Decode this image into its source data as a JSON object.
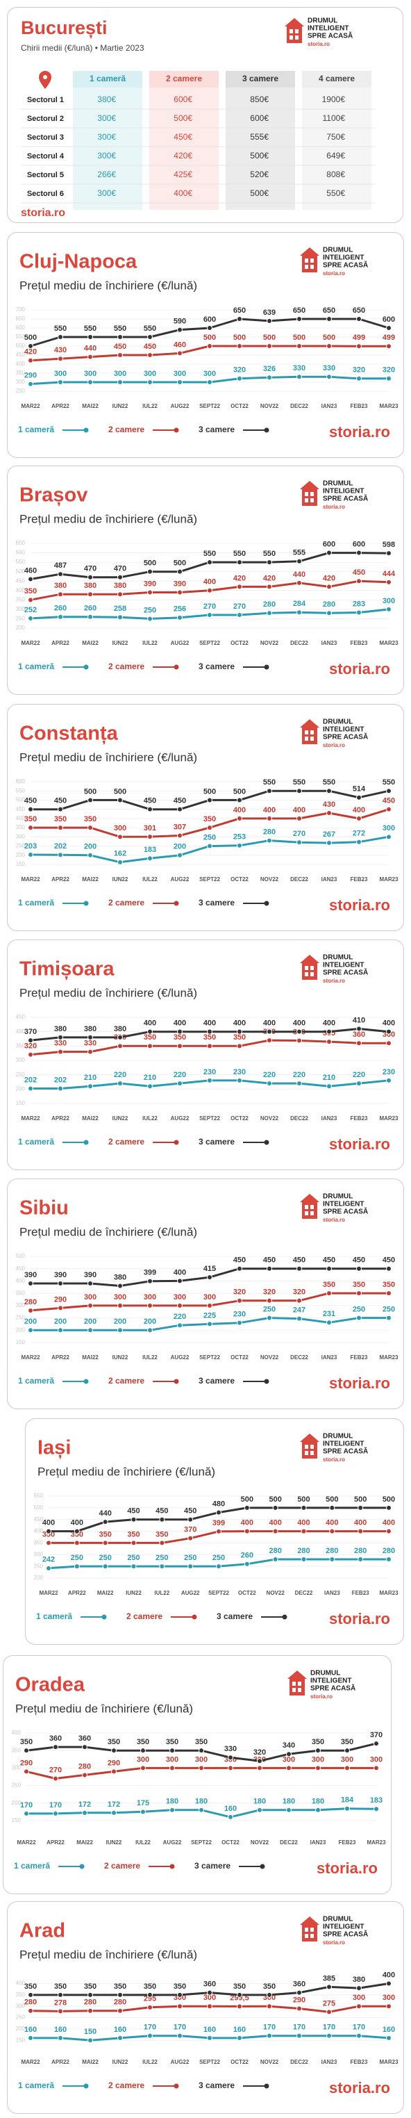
{
  "brand": {
    "tagline": [
      "DRUMUL",
      "INTELIGENT",
      "SPRE ACASĂ"
    ],
    "small": "storia.ro",
    "logo": "storia.ro"
  },
  "bucharest": {
    "title": "București",
    "subtitle": "Chirii medii (€/lună) • Martie 2023",
    "columns": [
      "1 cameră",
      "2 camere",
      "3 camere",
      "4 camere"
    ],
    "rows": [
      [
        "Sectorul 1",
        "380€",
        "600€",
        "850€",
        "1900€"
      ],
      [
        "Sectorul 2",
        "300€",
        "500€",
        "600€",
        "1100€"
      ],
      [
        "Sectorul 3",
        "300€",
        "450€",
        "555€",
        "750€"
      ],
      [
        "Sectorul 4",
        "300€",
        "420€",
        "500€",
        "649€"
      ],
      [
        "Sectorul 5",
        "266€",
        "425€",
        "520€",
        "808€"
      ],
      [
        "Sectorul 6",
        "300€",
        "400€",
        "500€",
        "550€"
      ]
    ]
  },
  "chart_data": [
    {
      "type": "line",
      "title": "Cluj-Napoca",
      "subtitle": "Prețul mediu de închiriere (€/lună)",
      "categories": [
        "MAR22",
        "APR22",
        "MAI22",
        "IUN22",
        "IUL22",
        "AUG22",
        "SEPT22",
        "OCT22",
        "NOV22",
        "DEC22",
        "IAN23",
        "FEB23",
        "MAR23"
      ],
      "ylim": [
        250,
        700
      ],
      "yticks": [
        250,
        300,
        350,
        400,
        450,
        500,
        550,
        600,
        650,
        700
      ],
      "grid": true,
      "series": [
        {
          "name": "1 cameră",
          "color": "#2a9bb0",
          "values": [
            290,
            300,
            300,
            300,
            300,
            300,
            300,
            320,
            326,
            330,
            330,
            320,
            320
          ]
        },
        {
          "name": "2 camere",
          "color": "#c23b32",
          "values": [
            420,
            430,
            440,
            450,
            450,
            460,
            500,
            500,
            500,
            500,
            500,
            499,
            499
          ]
        },
        {
          "name": "3 camere",
          "color": "#333333",
          "values": [
            500,
            550,
            550,
            550,
            550,
            590,
            600,
            650,
            639,
            650,
            650,
            650,
            600
          ]
        }
      ]
    },
    {
      "type": "line",
      "title": "Brașov",
      "subtitle": "Prețul mediu de închiriere (€/lună)",
      "categories": [
        "MAR22",
        "APR22",
        "MAI22",
        "IUN22",
        "IUL22",
        "AUG22",
        "SEPT22",
        "OCT22",
        "NOV22",
        "DEC22",
        "IAN23",
        "FEB23",
        "MAR23"
      ],
      "ylim": [
        200,
        650
      ],
      "yticks": [
        200,
        250,
        300,
        350,
        400,
        450,
        500,
        550,
        600,
        650
      ],
      "grid": true,
      "series": [
        {
          "name": "1 cameră",
          "color": "#2a9bb0",
          "values": [
            252,
            260,
            260,
            258,
            250,
            256,
            270,
            270,
            280,
            284,
            280,
            283,
            300
          ]
        },
        {
          "name": "2 camere",
          "color": "#c23b32",
          "values": [
            350,
            380,
            380,
            380,
            390,
            390,
            400,
            420,
            420,
            440,
            420,
            450,
            444
          ]
        },
        {
          "name": "3 camere",
          "color": "#333333",
          "values": [
            460,
            487,
            470,
            470,
            500,
            500,
            550,
            550,
            550,
            555,
            600,
            600,
            598
          ]
        }
      ]
    },
    {
      "type": "line",
      "title": "Constanța",
      "subtitle": "Prețul mediu de închiriere (€/lună)",
      "categories": [
        "MAR22",
        "APR22",
        "MAI22",
        "IUN22",
        "IUL22",
        "AUG22",
        "SEPT22",
        "OCT22",
        "NOV22",
        "DEC22",
        "IAN23",
        "FEB23",
        "MAR23"
      ],
      "ylim": [
        150,
        600
      ],
      "yticks": [
        150,
        200,
        250,
        300,
        350,
        400,
        450,
        500,
        550,
        600
      ],
      "grid": true,
      "series": [
        {
          "name": "1 cameră",
          "color": "#2a9bb0",
          "values": [
            203,
            202,
            200,
            162,
            183,
            200,
            250,
            253,
            280,
            270,
            267,
            272,
            300
          ]
        },
        {
          "name": "2 camere",
          "color": "#c23b32",
          "values": [
            350,
            350,
            350,
            300,
            301,
            307,
            350,
            400,
            400,
            400,
            430,
            400,
            450
          ]
        },
        {
          "name": "3 camere",
          "color": "#333333",
          "values": [
            450,
            450,
            500,
            500,
            450,
            450,
            500,
            500,
            550,
            550,
            550,
            514,
            550
          ]
        }
      ]
    },
    {
      "type": "line",
      "title": "Timișoara",
      "subtitle": "Prețul mediu de închiriere (€/lună)",
      "categories": [
        "MAR22",
        "APR22",
        "MAI22",
        "IUN22",
        "IUL22",
        "AUG22",
        "SEPT22",
        "OCT22",
        "NOV22",
        "DEC22",
        "IAN23",
        "FEB23",
        "MAR23"
      ],
      "ylim": [
        150,
        450
      ],
      "yticks": [
        150,
        200,
        250,
        300,
        350,
        400,
        450
      ],
      "grid": true,
      "series": [
        {
          "name": "1 cameră",
          "color": "#2a9bb0",
          "values": [
            202,
            202,
            210,
            220,
            210,
            220,
            230,
            230,
            220,
            220,
            210,
            220,
            230
          ]
        },
        {
          "name": "2 camere",
          "color": "#c23b32",
          "values": [
            320,
            330,
            330,
            350,
            350,
            350,
            350,
            350,
            370,
            369,
            365,
            360,
            360
          ]
        },
        {
          "name": "3 camere",
          "color": "#333333",
          "values": [
            370,
            380,
            380,
            380,
            400,
            400,
            400,
            400,
            400,
            400,
            400,
            410,
            400
          ]
        }
      ]
    },
    {
      "type": "line",
      "title": "Sibiu",
      "subtitle": "Prețul mediu de închiriere (€/lună)",
      "categories": [
        "MAR22",
        "APR22",
        "MAI22",
        "IUN22",
        "IUL22",
        "AUG22",
        "SEPT22",
        "OCT22",
        "NOV22",
        "DEC22",
        "IAN23",
        "FEB23",
        "MAR23"
      ],
      "ylim": [
        150,
        500
      ],
      "yticks": [
        150,
        200,
        250,
        300,
        350,
        400,
        450,
        500
      ],
      "grid": true,
      "series": [
        {
          "name": "1 cameră",
          "color": "#2a9bb0",
          "values": [
            200,
            200,
            200,
            200,
            200,
            220,
            225,
            230,
            250,
            247,
            231,
            250,
            250
          ]
        },
        {
          "name": "2 camere",
          "color": "#c23b32",
          "values": [
            280,
            290,
            300,
            300,
            300,
            300,
            300,
            320,
            320,
            320,
            350,
            350,
            350
          ]
        },
        {
          "name": "3 camere",
          "color": "#333333",
          "values": [
            390,
            390,
            390,
            380,
            399,
            400,
            415,
            450,
            450,
            450,
            450,
            450,
            450
          ]
        }
      ]
    },
    {
      "type": "line",
      "title": "Iași",
      "subtitle": "Prețul mediu de închiriere (€/lună)",
      "categories": [
        "MAR22",
        "APR22",
        "MAI22",
        "IUN22",
        "IUL22",
        "AUG22",
        "SEPT22",
        "OCT22",
        "NOV22",
        "DEC22",
        "IAN23",
        "FEB23",
        "MAR23"
      ],
      "ylim": [
        200,
        550
      ],
      "yticks": [
        200,
        250,
        300,
        350,
        400,
        450,
        500,
        550
      ],
      "grid": true,
      "series": [
        {
          "name": "1 cameră",
          "color": "#2a9bb0",
          "values": [
            242,
            250,
            250,
            250,
            250,
            250,
            250,
            260,
            280,
            280,
            280,
            280,
            280
          ]
        },
        {
          "name": "2 camere",
          "color": "#c23b32",
          "values": [
            350,
            350,
            350,
            350,
            350,
            370,
            399,
            400,
            400,
            400,
            400,
            400,
            400
          ]
        },
        {
          "name": "3 camere",
          "color": "#333333",
          "values": [
            400,
            400,
            440,
            450,
            450,
            450,
            480,
            500,
            500,
            500,
            500,
            500,
            500
          ]
        }
      ]
    },
    {
      "type": "line",
      "title": "Oradea",
      "subtitle": "Prețul mediu de închiriere (€/lună)",
      "categories": [
        "MAR22",
        "APR22",
        "MAI22",
        "IUN22",
        "IUL22",
        "AUG22",
        "SEPT22",
        "OCT22",
        "NOV22",
        "DEC22",
        "IAN23",
        "FEB23",
        "MAR23"
      ],
      "ylim": [
        130,
        400
      ],
      "yticks": [
        150,
        200,
        250,
        300,
        350,
        400
      ],
      "grid": true,
      "series": [
        {
          "name": "1 cameră",
          "color": "#2a9bb0",
          "values": [
            170,
            170,
            172,
            172,
            175,
            180,
            180,
            160,
            180,
            180,
            180,
            184,
            183
          ]
        },
        {
          "name": "2 camere",
          "color": "#c23b32",
          "values": [
            290,
            270,
            280,
            290,
            300,
            300,
            300,
            300,
            300,
            300,
            300,
            300,
            300
          ]
        },
        {
          "name": "3 camere",
          "color": "#333333",
          "values": [
            350,
            360,
            360,
            350,
            350,
            350,
            350,
            330,
            320,
            340,
            350,
            350,
            370
          ]
        }
      ]
    },
    {
      "type": "line",
      "title": "Arad",
      "subtitle": "Prețul mediu de închiriere (€/lună)",
      "categories": [
        "MAR22",
        "APR22",
        "MAI22",
        "IUN22",
        "IUL22",
        "AUG22",
        "SEPT22",
        "OCT22",
        "NOV22",
        "DEC22",
        "IAN23",
        "FEB23",
        "MAR23"
      ],
      "ylim": [
        120,
        420
      ],
      "yticks": [
        150,
        200,
        250,
        300,
        350,
        400
      ],
      "grid": true,
      "series": [
        {
          "name": "1 cameră",
          "color": "#2a9bb0",
          "values": [
            160,
            160,
            150,
            160,
            170,
            170,
            160,
            160,
            170,
            170,
            170,
            170,
            160
          ]
        },
        {
          "name": "2 camere",
          "color": "#c23b32",
          "values": [
            280,
            278,
            280,
            280,
            295,
            300,
            300,
            299.5,
            300,
            290,
            275,
            300,
            300
          ],
          "value_labels": [
            "280",
            "278",
            "280",
            "280",
            "295",
            "300",
            "300",
            "299,5",
            "300",
            "290",
            "275",
            "300",
            "300"
          ]
        },
        {
          "name": "3 camere",
          "color": "#333333",
          "values": [
            350,
            350,
            350,
            350,
            350,
            350,
            360,
            350,
            350,
            360,
            385,
            380,
            400
          ]
        }
      ]
    }
  ]
}
